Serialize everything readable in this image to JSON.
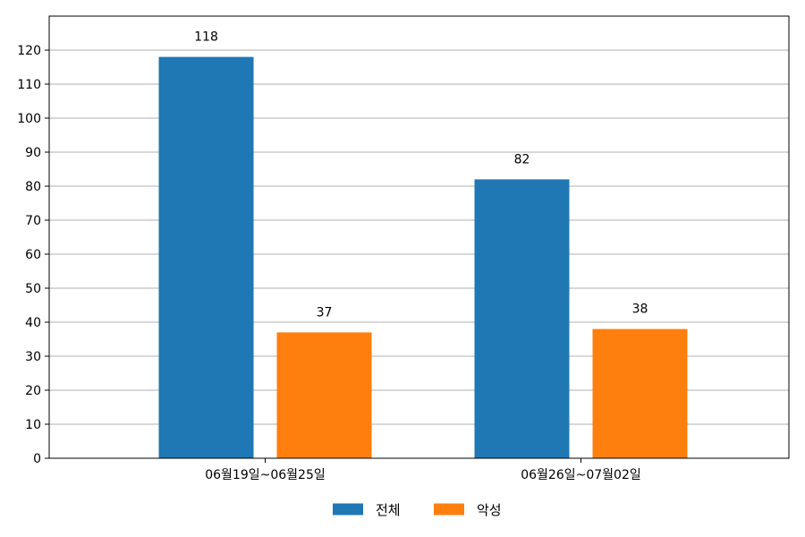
{
  "chart_data": {
    "type": "bar",
    "categories": [
      "06월19일~06월25일",
      "06월26일~07월02일"
    ],
    "series": [
      {
        "name": "전체",
        "values": [
          118,
          82
        ],
        "color": "#1f77b4"
      },
      {
        "name": "악성",
        "values": [
          37,
          38
        ],
        "color": "#ff7f0e"
      }
    ],
    "ylim": [
      0,
      130
    ],
    "yticks": [
      0,
      10,
      20,
      30,
      40,
      50,
      60,
      70,
      80,
      90,
      100,
      110,
      120
    ],
    "grid": true,
    "legend": "bottom-center",
    "title": "",
    "xlabel": "",
    "ylabel": ""
  }
}
